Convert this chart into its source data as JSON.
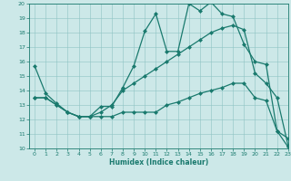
{
  "xlabel": "Humidex (Indice chaleur)",
  "xlim": [
    -0.5,
    23
  ],
  "ylim": [
    10,
    20
  ],
  "yticks": [
    10,
    11,
    12,
    13,
    14,
    15,
    16,
    17,
    18,
    19,
    20
  ],
  "xticks": [
    0,
    1,
    2,
    3,
    4,
    5,
    6,
    7,
    8,
    9,
    10,
    11,
    12,
    13,
    14,
    15,
    16,
    17,
    18,
    19,
    20,
    21,
    22,
    23
  ],
  "color": "#1a7a6e",
  "bg_color": "#cce8e8",
  "line1_x": [
    0,
    1,
    2,
    3,
    4,
    5,
    6,
    7,
    8,
    9,
    10,
    11,
    12,
    13,
    14,
    15,
    16,
    17,
    18,
    19,
    20,
    21,
    22,
    23
  ],
  "line1_y": [
    15.7,
    13.8,
    13.1,
    12.5,
    12.2,
    12.2,
    12.9,
    12.9,
    14.2,
    15.7,
    18.1,
    19.3,
    16.7,
    16.7,
    20.0,
    19.5,
    20.1,
    19.3,
    19.1,
    17.2,
    16.0,
    15.8,
    11.2,
    10.7
  ],
  "line2_x": [
    0,
    1,
    2,
    3,
    4,
    5,
    6,
    7,
    8,
    9,
    10,
    11,
    12,
    13,
    14,
    15,
    16,
    17,
    18,
    19,
    20,
    21,
    22,
    23
  ],
  "line2_y": [
    13.5,
    13.5,
    13.0,
    12.5,
    12.2,
    12.2,
    12.5,
    13.0,
    14.0,
    14.5,
    15.0,
    15.5,
    16.0,
    16.5,
    17.0,
    17.5,
    18.0,
    18.3,
    18.5,
    18.2,
    15.2,
    14.5,
    13.5,
    10.2
  ],
  "line3_x": [
    0,
    1,
    2,
    3,
    4,
    5,
    6,
    7,
    8,
    9,
    10,
    11,
    12,
    13,
    14,
    15,
    16,
    17,
    18,
    19,
    20,
    21,
    22,
    23
  ],
  "line3_y": [
    13.5,
    13.5,
    13.0,
    12.5,
    12.2,
    12.2,
    12.2,
    12.2,
    12.5,
    12.5,
    12.5,
    12.5,
    13.0,
    13.2,
    13.5,
    13.8,
    14.0,
    14.2,
    14.5,
    14.5,
    13.5,
    13.3,
    11.2,
    10.1
  ],
  "marker": "D",
  "markersize": 2.0,
  "linewidth": 0.9
}
